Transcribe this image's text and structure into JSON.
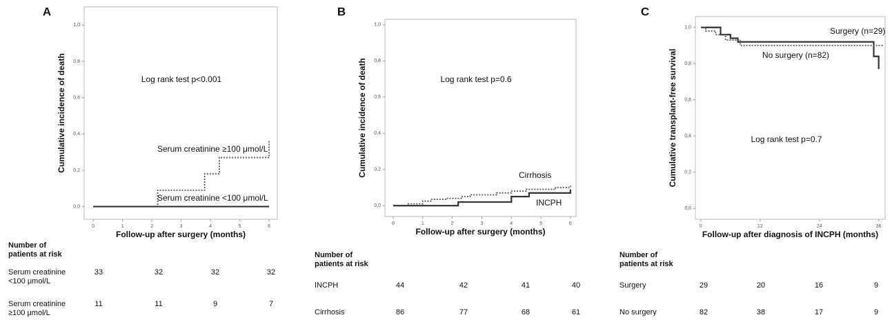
{
  "chart_data": [
    {
      "type": "line",
      "panel": "A",
      "step": true,
      "x_label": "Follow-up after surgery (months)",
      "y_label": "Cumulative incidence of death",
      "annotation": "Log rank test p<0.001",
      "xlim": [
        -0.31,
        6.28
      ],
      "ylim": [
        -0.07,
        1.1
      ],
      "xticks": [
        0,
        1,
        2,
        3,
        4,
        5,
        6
      ],
      "yticks": [
        {
          "value": 0,
          "label": "0,0"
        },
        {
          "value": 0.2,
          "label": "0,2"
        },
        {
          "value": 0.4,
          "label": "0,4"
        },
        {
          "value": 0.6,
          "label": "0,6"
        },
        {
          "value": 0.8,
          "label": "0,8"
        },
        {
          "value": 1,
          "label": "1,0"
        }
      ],
      "series": [
        {
          "name": "Serum creatinine ≥100 μmol/L",
          "color": "#555555",
          "style": "dotted",
          "x": [
            0,
            2.2,
            3.8,
            4.3,
            6
          ],
          "values": [
            0,
            0.09,
            0.18,
            0.27,
            0.36
          ]
        },
        {
          "name": "Serum creatinine <100 μmol/L",
          "color": "#333333",
          "style": "solid",
          "x": [
            0,
            6
          ],
          "values": [
            0,
            0
          ]
        }
      ],
      "risk_table": {
        "header": "Number of patients at risk",
        "rows": [
          {
            "label": "Serum creatinine <100 μmol/L",
            "values": [
              33,
              32,
              32,
              32
            ]
          },
          {
            "label": "Serum creatinine ≥100 μmol/L",
            "values": [
              11,
              11,
              9,
              7
            ]
          }
        ]
      }
    },
    {
      "type": "line",
      "panel": "B",
      "step": true,
      "x_label": "Follow-up after surgery (months)",
      "y_label": "Cumulative incidence of death",
      "annotation": "Log rank test p=0.6",
      "xlim": [
        -0.28,
        6.19
      ],
      "ylim": [
        -0.06,
        1.03
      ],
      "xticks": [
        0,
        1,
        2,
        3,
        4,
        5,
        6
      ],
      "yticks": [
        {
          "value": 0,
          "label": "0,0"
        },
        {
          "value": 0.2,
          "label": "0,2"
        },
        {
          "value": 0.4,
          "label": "0,4"
        },
        {
          "value": 0.6,
          "label": "0,6"
        },
        {
          "value": 0.8,
          "label": "0,8"
        },
        {
          "value": 1,
          "label": "1,0"
        }
      ],
      "series": [
        {
          "name": "Cirrhosis",
          "color": "#555555",
          "style": "dotted",
          "x": [
            0,
            0.5,
            1,
            1.3,
            1.8,
            2.3,
            2.6,
            3.5,
            4,
            4.5,
            5.5,
            6
          ],
          "values": [
            0,
            0.01,
            0.025,
            0.035,
            0.04,
            0.05,
            0.06,
            0.07,
            0.08,
            0.09,
            0.1,
            0.11
          ]
        },
        {
          "name": "INCPH",
          "color": "#333333",
          "style": "solid",
          "x": [
            0,
            2.2,
            4,
            4.6,
            6
          ],
          "values": [
            0,
            0.02,
            0.05,
            0.07,
            0.09
          ]
        }
      ],
      "risk_table": {
        "header": "Number of patients at risk",
        "rows": [
          {
            "label": "INCPH",
            "values": [
              44,
              42,
              41,
              40
            ]
          },
          {
            "label": "Cirrhosis",
            "values": [
              86,
              77,
              68,
              61
            ]
          }
        ]
      }
    },
    {
      "type": "line",
      "panel": "C",
      "step": true,
      "x_label": "Follow-up after diagnosis of INCPH (months)",
      "y_label": "Cumulative transplant-free survival",
      "annotation": "Log rank test p=0.7",
      "xlim": [
        -1.1,
        37.3
      ],
      "ylim": [
        -0.06,
        1.06
      ],
      "xticks": [
        0,
        12,
        24,
        36
      ],
      "yticks": [
        {
          "value": 0,
          "label": "0,0"
        },
        {
          "value": 0.2,
          "label": "0,2"
        },
        {
          "value": 0.4,
          "label": "0,4"
        },
        {
          "value": 0.6,
          "label": "0,6"
        },
        {
          "value": 0.8,
          "label": "0,8"
        },
        {
          "value": 1,
          "label": "1,0"
        }
      ],
      "series": [
        {
          "name": "Surgery (n=29)",
          "color": "#333333",
          "style": "solid",
          "x": [
            0,
            4,
            6,
            7.5,
            35,
            36
          ],
          "values": [
            1,
            0.96,
            0.94,
            0.92,
            0.84,
            0.77
          ]
        },
        {
          "name": "No surgery (n=82)",
          "color": "#555555",
          "style": "dotted",
          "x": [
            0,
            1,
            3,
            5,
            8,
            37
          ],
          "values": [
            1,
            0.98,
            0.96,
            0.93,
            0.9,
            0.9
          ]
        }
      ],
      "risk_table": {
        "header": "Number of patients at risk",
        "rows": [
          {
            "label": "Surgery",
            "values": [
              29,
              20,
              16,
              9
            ]
          },
          {
            "label": "No surgery",
            "values": [
              82,
              38,
              17,
              9
            ]
          }
        ]
      }
    }
  ]
}
